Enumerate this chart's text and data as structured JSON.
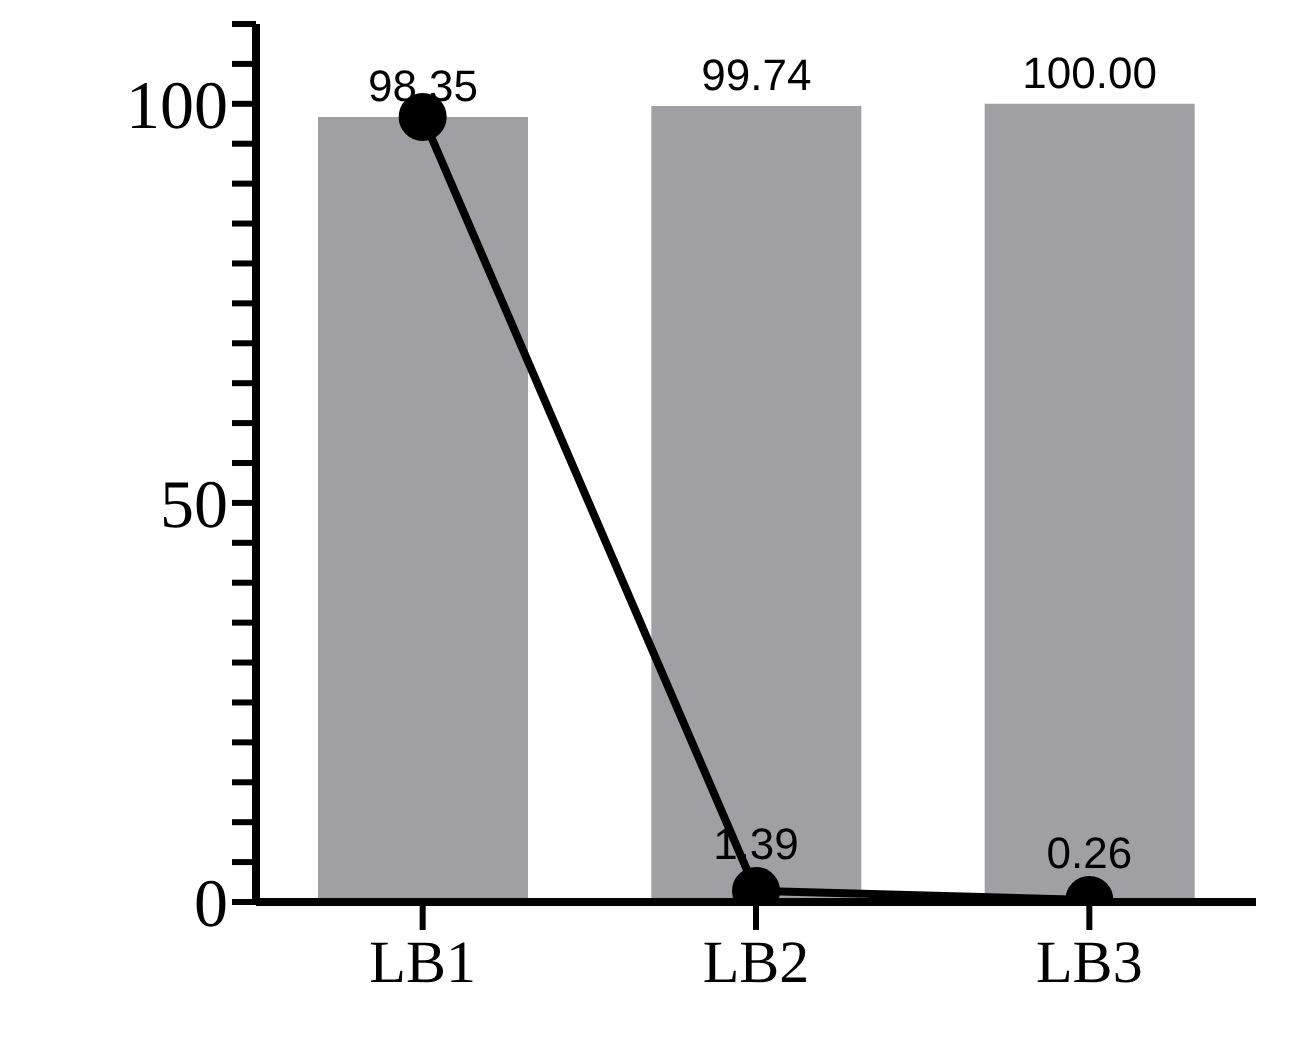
{
  "chart_data": {
    "type": "bar",
    "categories": [
      "LB1",
      "LB2",
      "LB3"
    ],
    "series": [
      {
        "color": "#a0a0a4",
        "values": [
          98.35,
          99.74,
          100.0
        ],
        "value_labels": [
          "98.35",
          "99.74",
          "100.00"
        ]
      },
      {
        "type": "line",
        "color": "#000000",
        "values": [
          98.35,
          1.39,
          0.26
        ],
        "value_labels": [
          null,
          "1.39",
          "0.26"
        ],
        "marker": "circle",
        "line_style": "solid"
      }
    ],
    "ylim": [
      0,
      110
    ],
    "yticks": [
      0,
      {
        "value": 5,
        "label": null
      },
      {
        "value": 10,
        "label": null
      },
      {
        "value": 15,
        "label": null
      },
      {
        "value": 20,
        "label": null
      },
      {
        "value": 25,
        "label": null
      },
      {
        "value": 30,
        "label": null
      },
      {
        "value": 35,
        "label": null
      },
      {
        "value": 40,
        "label": null
      },
      {
        "value": 45,
        "label": null
      },
      50,
      {
        "value": 55,
        "label": null
      },
      {
        "value": 60,
        "label": null
      },
      {
        "value": 65,
        "label": null
      },
      {
        "value": 70,
        "label": null
      },
      {
        "value": 75,
        "label": null
      },
      {
        "value": 80,
        "label": null
      },
      {
        "value": 85,
        "label": null
      },
      {
        "value": 90,
        "label": null
      },
      {
        "value": 95,
        "label": null
      },
      100,
      {
        "value": 105,
        "label": null
      },
      {
        "value": 110,
        "label": null
      }
    ],
    "grid": false,
    "legend": false
  }
}
